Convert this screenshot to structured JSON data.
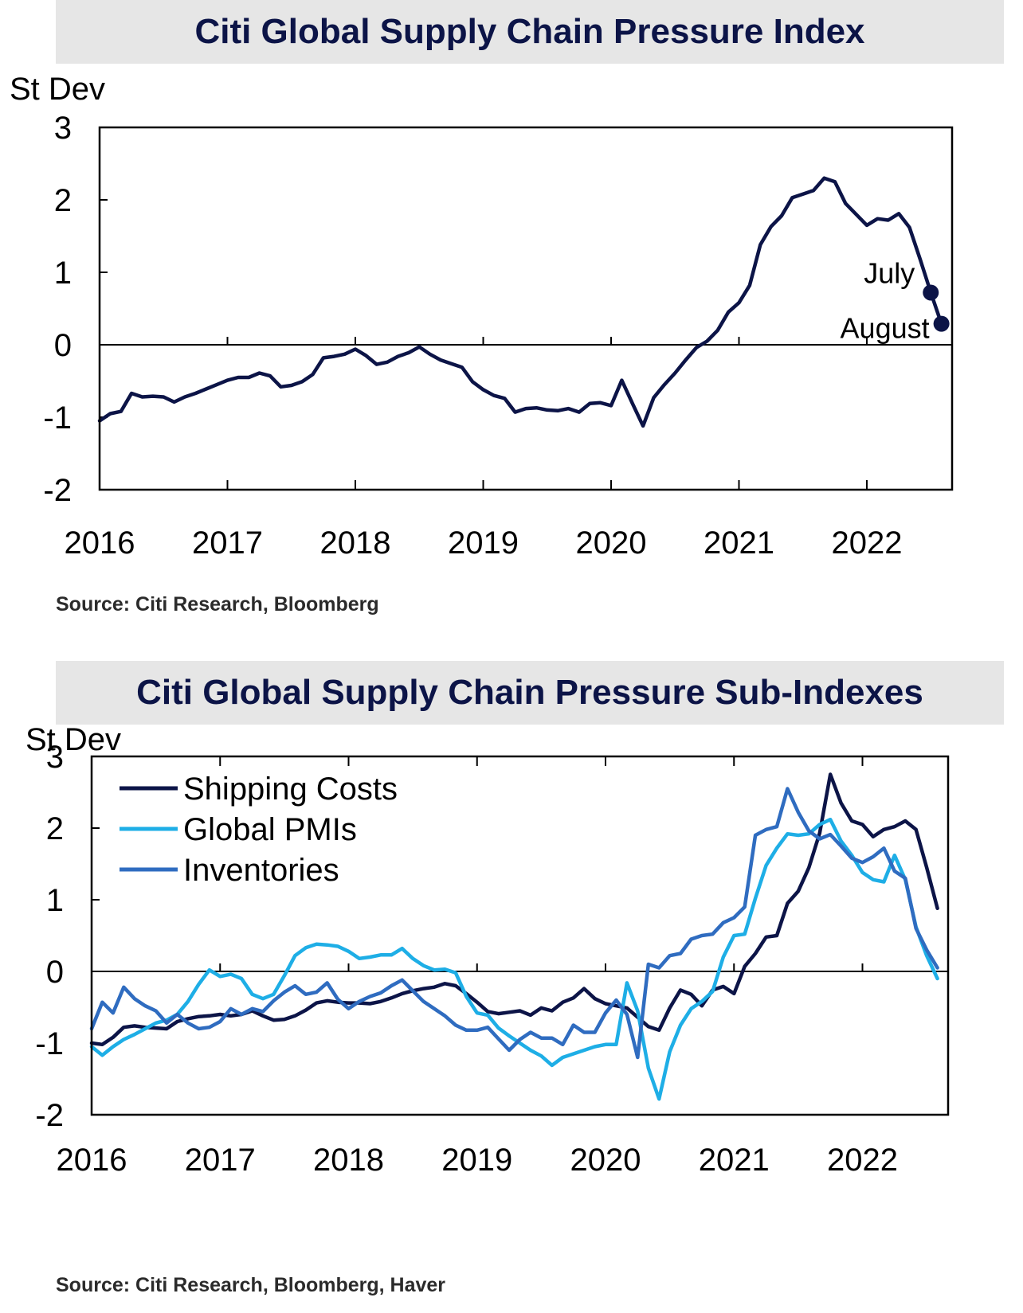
{
  "colors": {
    "navy": "#0c1447",
    "pmi": "#1eaee6",
    "inventories": "#2f6cc0",
    "frame": "#000000",
    "title_bg": "#e6e6e6"
  },
  "chart_data": [
    {
      "type": "line",
      "title": "Citi Global Supply Chain Pressure Index",
      "ylabel": "St Dev",
      "xlabel": "",
      "ylim": [
        -2,
        3
      ],
      "yticks": [
        3,
        2,
        1,
        0,
        -1,
        -2
      ],
      "xlim": [
        "2016-01",
        "2022-09"
      ],
      "xticks": [
        "2016",
        "2017",
        "2018",
        "2019",
        "2020",
        "2021",
        "2022"
      ],
      "grid": false,
      "source": "Source: Citi Research, Bloomberg",
      "annotations": [
        {
          "text": "July",
          "x": "2022-07",
          "y": 0.72
        },
        {
          "text": "August",
          "x": "2022-08",
          "y": 0.29
        }
      ],
      "series": [
        {
          "name": "",
          "color": "navy",
          "x": [
            "2016-01",
            "2016-02",
            "2016-03",
            "2016-04",
            "2016-05",
            "2016-06",
            "2016-07",
            "2016-08",
            "2016-09",
            "2016-10",
            "2016-11",
            "2016-12",
            "2017-01",
            "2017-02",
            "2017-03",
            "2017-04",
            "2017-05",
            "2017-06",
            "2017-07",
            "2017-08",
            "2017-09",
            "2017-10",
            "2017-11",
            "2017-12",
            "2018-01",
            "2018-02",
            "2018-03",
            "2018-04",
            "2018-05",
            "2018-06",
            "2018-07",
            "2018-08",
            "2018-09",
            "2018-10",
            "2018-11",
            "2018-12",
            "2019-01",
            "2019-02",
            "2019-03",
            "2019-04",
            "2019-05",
            "2019-06",
            "2019-07",
            "2019-08",
            "2019-09",
            "2019-10",
            "2019-11",
            "2019-12",
            "2020-01",
            "2020-02",
            "2020-03",
            "2020-04",
            "2020-05",
            "2020-06",
            "2020-07",
            "2020-08",
            "2020-09",
            "2020-10",
            "2020-11",
            "2020-12",
            "2021-01",
            "2021-02",
            "2021-03",
            "2021-04",
            "2021-05",
            "2021-06",
            "2021-07",
            "2021-08",
            "2021-09",
            "2021-10",
            "2021-11",
            "2021-12",
            "2022-01",
            "2022-02",
            "2022-03",
            "2022-04",
            "2022-05",
            "2022-06",
            "2022-07",
            "2022-08"
          ],
          "values": [
            -1.05,
            -0.95,
            -0.92,
            -0.67,
            -0.72,
            -0.71,
            -0.72,
            -0.79,
            -0.72,
            -0.67,
            -0.61,
            -0.55,
            -0.49,
            -0.45,
            -0.45,
            -0.39,
            -0.43,
            -0.58,
            -0.56,
            -0.51,
            -0.41,
            -0.18,
            -0.16,
            -0.13,
            -0.06,
            -0.15,
            -0.27,
            -0.24,
            -0.16,
            -0.11,
            -0.03,
            -0.13,
            -0.21,
            -0.26,
            -0.31,
            -0.51,
            -0.62,
            -0.7,
            -0.74,
            -0.93,
            -0.88,
            -0.87,
            -0.9,
            -0.91,
            -0.88,
            -0.93,
            -0.81,
            -0.8,
            -0.84,
            -0.49,
            -0.81,
            -1.12,
            -0.73,
            -0.55,
            -0.39,
            -0.21,
            -0.04,
            0.05,
            0.2,
            0.45,
            0.58,
            0.82,
            1.38,
            1.63,
            1.78,
            2.03,
            2.08,
            2.13,
            2.3,
            2.25,
            1.95,
            1.8,
            1.65,
            1.74,
            1.72,
            1.81,
            1.62,
            1.18,
            0.72,
            0.29
          ]
        }
      ]
    },
    {
      "type": "line",
      "title": "Citi Global Supply Chain Pressure Sub-Indexes",
      "ylabel": "St Dev",
      "xlabel": "",
      "ylim": [
        -2,
        3
      ],
      "yticks": [
        3,
        2,
        1,
        0,
        -1,
        -2
      ],
      "xlim": [
        "2016-01",
        "2022-09"
      ],
      "xticks": [
        "2016",
        "2017",
        "2018",
        "2019",
        "2020",
        "2021",
        "2022"
      ],
      "grid": false,
      "legend": "top-left",
      "source": "Source: Citi Research, Bloomberg, Haver",
      "series": [
        {
          "name": "Shipping Costs",
          "color": "navy",
          "values": [
            -1.0,
            -1.02,
            -0.92,
            -0.78,
            -0.76,
            -0.78,
            -0.79,
            -0.8,
            -0.7,
            -0.66,
            -0.63,
            -0.62,
            -0.6,
            -0.62,
            -0.6,
            -0.55,
            -0.62,
            -0.68,
            -0.67,
            -0.62,
            -0.54,
            -0.44,
            -0.41,
            -0.43,
            -0.44,
            -0.44,
            -0.45,
            -0.42,
            -0.37,
            -0.31,
            -0.27,
            -0.24,
            -0.22,
            -0.17,
            -0.2,
            -0.31,
            -0.43,
            -0.56,
            -0.59,
            -0.57,
            -0.55,
            -0.61,
            -0.51,
            -0.55,
            -0.43,
            -0.37,
            -0.24,
            -0.38,
            -0.45,
            -0.48,
            -0.51,
            -0.64,
            -0.77,
            -0.82,
            -0.51,
            -0.26,
            -0.32,
            -0.48,
            -0.26,
            -0.21,
            -0.31,
            0.07,
            0.25,
            0.48,
            0.5,
            0.95,
            1.12,
            1.45,
            1.93,
            2.75,
            2.35,
            2.1,
            2.05,
            1.88,
            1.98,
            2.02,
            2.1,
            1.98,
            1.45,
            0.88
          ]
        },
        {
          "name": "Global PMIs",
          "color": "pmi",
          "values": [
            -1.05,
            -1.17,
            -1.05,
            -0.95,
            -0.88,
            -0.8,
            -0.72,
            -0.68,
            -0.6,
            -0.42,
            -0.18,
            0.02,
            -0.07,
            -0.04,
            -0.1,
            -0.32,
            -0.38,
            -0.32,
            -0.06,
            0.22,
            0.33,
            0.38,
            0.37,
            0.35,
            0.28,
            0.18,
            0.2,
            0.23,
            0.23,
            0.32,
            0.18,
            0.08,
            0.02,
            0.03,
            -0.02,
            -0.35,
            -0.58,
            -0.61,
            -0.79,
            -0.9,
            -1.0,
            -1.1,
            -1.18,
            -1.31,
            -1.2,
            -1.15,
            -1.1,
            -1.05,
            -1.02,
            -1.02,
            -0.16,
            -0.55,
            -1.35,
            -1.78,
            -1.12,
            -0.75,
            -0.52,
            -0.42,
            -0.28,
            0.2,
            0.5,
            0.52,
            1.02,
            1.48,
            1.72,
            1.92,
            1.9,
            1.92,
            2.05,
            2.12,
            1.82,
            1.62,
            1.38,
            1.28,
            1.25,
            1.62,
            1.28,
            0.62,
            0.22,
            -0.1
          ]
        },
        {
          "name": "Inventories",
          "color": "inventories",
          "values": [
            -0.8,
            -0.43,
            -0.58,
            -0.22,
            -0.38,
            -0.48,
            -0.55,
            -0.72,
            -0.6,
            -0.72,
            -0.8,
            -0.78,
            -0.7,
            -0.52,
            -0.6,
            -0.52,
            -0.56,
            -0.41,
            -0.29,
            -0.2,
            -0.32,
            -0.29,
            -0.16,
            -0.39,
            -0.52,
            -0.42,
            -0.35,
            -0.3,
            -0.2,
            -0.12,
            -0.27,
            -0.42,
            -0.52,
            -0.62,
            -0.75,
            -0.82,
            -0.82,
            -0.78,
            -0.94,
            -1.1,
            -0.95,
            -0.85,
            -0.93,
            -0.93,
            -1.02,
            -0.75,
            -0.85,
            -0.85,
            -0.58,
            -0.4,
            -0.6,
            -1.2,
            0.1,
            0.05,
            0.22,
            0.25,
            0.45,
            0.5,
            0.52,
            0.68,
            0.75,
            0.9,
            1.9,
            1.98,
            2.02,
            2.55,
            2.22,
            1.96,
            1.85,
            1.91,
            1.75,
            1.58,
            1.52,
            1.6,
            1.72,
            1.4,
            1.3,
            0.6,
            0.3,
            0.05
          ]
        }
      ]
    }
  ]
}
